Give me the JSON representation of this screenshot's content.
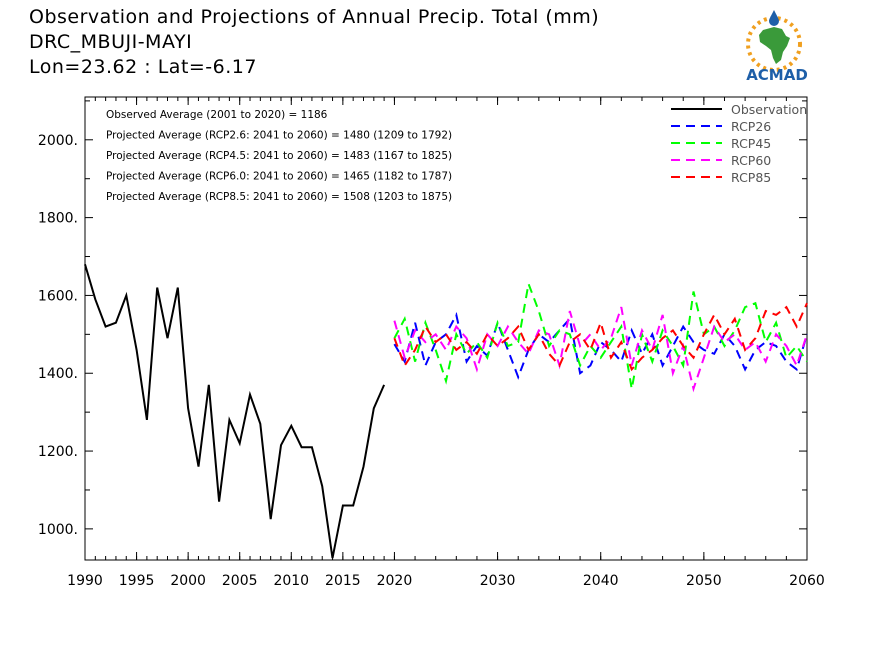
{
  "title": {
    "line1": "Observation and Projections of Annual Precip. Total (mm)",
    "line2": "DRC_MBUJI-MAYI",
    "line3": "Lon=23.62 : Lat=-6.17"
  },
  "logo": {
    "text": "ACMAD",
    "icon": "africa-sun-raindrop-logo"
  },
  "colors": {
    "observation": "#000000",
    "rcp26": "#0000ff",
    "rcp45": "#00ff00",
    "rcp60": "#ff00ff",
    "rcp85": "#ff0000",
    "logo_blue": "#1e5fa8",
    "logo_green": "#3a9a3a",
    "logo_orange": "#f0a020"
  },
  "chart_data": {
    "type": "line",
    "xlim": [
      1990,
      2060
    ],
    "ylim": [
      920,
      2110
    ],
    "xticks": [
      {
        "v": 1990,
        "label": "1990"
      },
      {
        "v": 1995,
        "label": "1995"
      },
      {
        "v": 2000,
        "label": "2000"
      },
      {
        "v": 2005,
        "label": "2005"
      },
      {
        "v": 2010,
        "label": "2010"
      },
      {
        "v": 2015,
        "label": "2015"
      },
      {
        "v": 2020,
        "label": "2020"
      },
      {
        "v": 2030,
        "label": "2030"
      },
      {
        "v": 2040,
        "label": "2040"
      },
      {
        "v": 2050,
        "label": "2050"
      },
      {
        "v": 2060,
        "label": "2060"
      }
    ],
    "yticks": [
      {
        "v": 1000,
        "label": "1000."
      },
      {
        "v": 1200,
        "label": "1200."
      },
      {
        "v": 1400,
        "label": "1400."
      },
      {
        "v": 1600,
        "label": "1600."
      },
      {
        "v": 1800,
        "label": "1800."
      },
      {
        "v": 2000,
        "label": "2000."
      }
    ],
    "annotations": [
      "Observed Average (2001 to 2020) = 1186",
      "Projected Average (RCP2.6: 2041 to 2060) = 1480 (1209 to 1792)",
      "Projected Average (RCP4.5: 2041 to 2060) = 1483 (1167 to 1825)",
      "Projected Average (RCP6.0: 2041 to 2060) = 1465 (1182 to 1787)",
      "Projected Average (RCP8.5: 2041 to 2060) = 1508 (1203 to 1875)"
    ],
    "legend_position": "top-right",
    "series": [
      {
        "name": "Observation",
        "key": "observation",
        "dash": "solid",
        "x_start": 1990,
        "values": [
          1680,
          1590,
          1520,
          1530,
          1600,
          1460,
          1280,
          1620,
          1490,
          1620,
          1310,
          1160,
          1370,
          1070,
          1280,
          1220,
          1345,
          1270,
          1025,
          1215,
          1265,
          1210,
          1210,
          1110,
          925,
          1060,
          1060,
          1160,
          1310,
          1370
        ]
      },
      {
        "name": "RCP26",
        "key": "rcp26",
        "dash": "dashed",
        "x_start": 2020,
        "values": [
          1475,
          1430,
          1530,
          1420,
          1480,
          1500,
          1550,
          1430,
          1470,
          1445,
          1530,
          1460,
          1390,
          1460,
          1500,
          1480,
          1510,
          1540,
          1400,
          1420,
          1480,
          1460,
          1430,
          1510,
          1450,
          1500,
          1420,
          1470,
          1520,
          1480,
          1460,
          1450,
          1500,
          1470,
          1410,
          1460,
          1480,
          1470,
          1430,
          1410,
          1500
        ]
      },
      {
        "name": "RCP45",
        "key": "rcp45",
        "dash": "dashed",
        "x_start": 2020,
        "values": [
          1490,
          1540,
          1430,
          1530,
          1460,
          1380,
          1500,
          1450,
          1480,
          1440,
          1530,
          1470,
          1480,
          1630,
          1560,
          1470,
          1510,
          1500,
          1420,
          1470,
          1440,
          1480,
          1520,
          1360,
          1500,
          1430,
          1510,
          1470,
          1420,
          1610,
          1500,
          1520,
          1470,
          1510,
          1570,
          1580,
          1480,
          1530,
          1440,
          1470,
          1430
        ]
      },
      {
        "name": "RCP60",
        "key": "rcp60",
        "dash": "dashed",
        "x_start": 2020,
        "values": [
          1535,
          1440,
          1510,
          1480,
          1500,
          1460,
          1520,
          1490,
          1410,
          1500,
          1470,
          1520,
          1480,
          1450,
          1510,
          1500,
          1420,
          1560,
          1470,
          1500,
          1460,
          1490,
          1570,
          1420,
          1510,
          1460,
          1550,
          1400,
          1470,
          1360,
          1440,
          1520,
          1480,
          1500,
          1460,
          1480,
          1430,
          1500,
          1470,
          1420,
          1500
        ]
      },
      {
        "name": "RCP85",
        "key": "rcp85",
        "dash": "dashed",
        "x_start": 2020,
        "values": [
          1490,
          1420,
          1460,
          1520,
          1480,
          1500,
          1460,
          1480,
          1450,
          1500,
          1470,
          1490,
          1520,
          1460,
          1500,
          1450,
          1420,
          1480,
          1500,
          1460,
          1530,
          1440,
          1480,
          1410,
          1440,
          1460,
          1490,
          1510,
          1470,
          1440,
          1500,
          1550,
          1500,
          1540,
          1460,
          1490,
          1560,
          1550,
          1570,
          1520,
          1580
        ]
      }
    ]
  }
}
